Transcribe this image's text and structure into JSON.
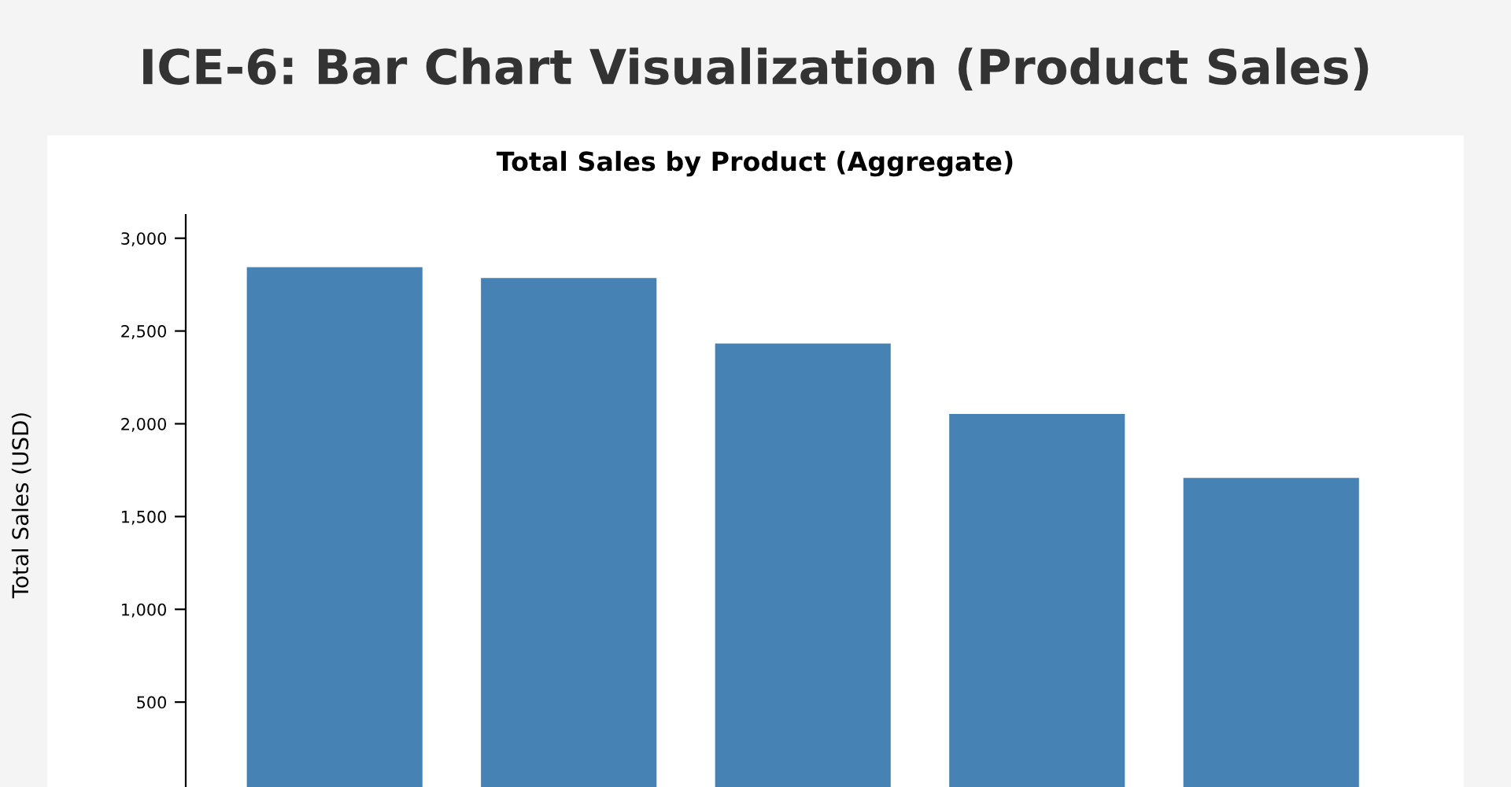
{
  "chart_data": {
    "type": "bar",
    "title": "ICE-6: Bar Chart Visualization (Product Sales)",
    "subtitle": "Total Sales by Product (Aggregate)",
    "ylabel": "Total Sales (USD)",
    "categories": [
      null,
      null,
      null,
      null,
      null
    ],
    "values": [
      2844,
      2786,
      2432,
      2053,
      1708
    ],
    "color": "#4682b4",
    "ylim": [
      0,
      3126
    ],
    "yticks": [
      {
        "value": 500,
        "label": "500"
      },
      {
        "value": 1000,
        "label": "1,000"
      },
      {
        "value": 1500,
        "label": "1,500"
      },
      {
        "value": 2000,
        "label": "2,000"
      },
      {
        "value": 2500,
        "label": "2,500"
      },
      {
        "value": 3000,
        "label": "3,000"
      }
    ],
    "tick_labels": "y",
    "grid": false
  }
}
